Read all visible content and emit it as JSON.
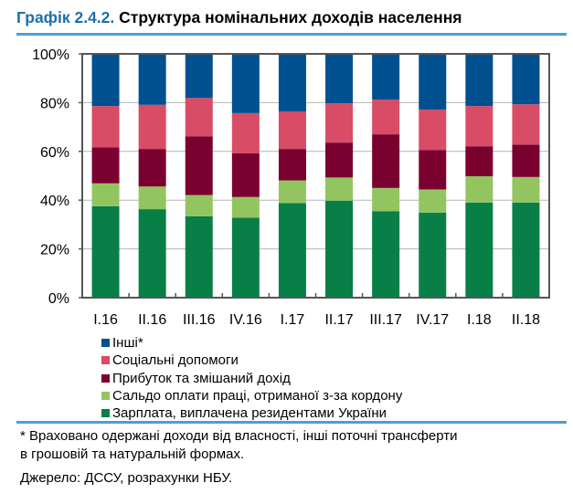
{
  "title_number": "Графік 2.4.2.",
  "title_text": "Структура номінальних доходів населення",
  "chart_data": {
    "type": "bar",
    "stacked": true,
    "title": "Графік 2.4.2. Структура номінальних доходів населення",
    "categories": [
      "I.16",
      "II.16",
      "III.16",
      "IV.16",
      "I.17",
      "II.17",
      "III.17",
      "IV.17",
      "I.18",
      "II.18"
    ],
    "ylim": [
      0,
      100
    ],
    "yticks": [
      "0%",
      "20%",
      "40%",
      "60%",
      "80%",
      "100%"
    ],
    "grid": true,
    "legend_position": "bottom",
    "series": [
      {
        "name": "Зарплата, виплачена резидентами України",
        "color": "#087f47",
        "values": [
          37.5,
          36.3,
          33.4,
          32.8,
          38.8,
          39.8,
          35.5,
          34.9,
          39.0,
          39.0
        ]
      },
      {
        "name": "Сальдо оплати праці, отриманої з-за кордону",
        "color": "#92c55f",
        "values": [
          9.4,
          9.3,
          8.7,
          8.5,
          9.3,
          9.5,
          9.5,
          9.5,
          10.8,
          10.5
        ]
      },
      {
        "name": "Прибуток та змішаний дохід",
        "color": "#7a0030",
        "values": [
          14.8,
          15.4,
          24.1,
          17.9,
          12.9,
          14.3,
          22.0,
          16.1,
          12.3,
          13.3
        ]
      },
      {
        "name": "Соціальні допомоги",
        "color": "#d94c66",
        "values": [
          16.9,
          18.1,
          15.7,
          16.5,
          15.4,
          16.1,
          14.2,
          16.6,
          16.5,
          16.5
        ]
      },
      {
        "name": "Інші*",
        "color": "#00508f",
        "values": [
          21.4,
          20.9,
          18.1,
          24.3,
          23.6,
          20.3,
          18.8,
          22.9,
          21.4,
          20.7
        ]
      }
    ]
  },
  "footnote_1": "* Враховано одержані доходи від власності, інші поточні трансферти",
  "footnote_2": "в грошовій та натуральній формах.",
  "source": "Джерело: ДССУ, розрахунки НБУ."
}
